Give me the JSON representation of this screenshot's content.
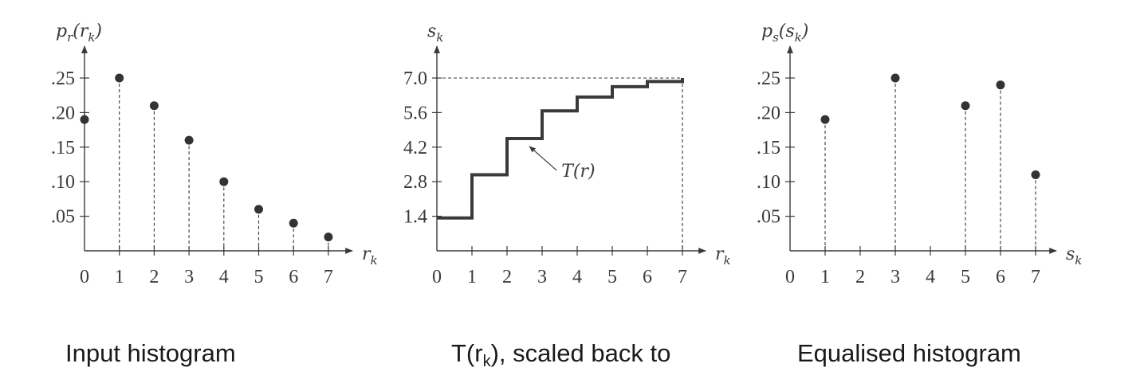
{
  "chart_data": [
    {
      "type": "scatter",
      "subtype": "stem",
      "ylabel": "p_r(r_k)",
      "xlabel": "r_k",
      "x": [
        0,
        1,
        2,
        3,
        4,
        5,
        6,
        7
      ],
      "values": [
        0.19,
        0.25,
        0.21,
        0.16,
        0.1,
        0.06,
        0.04,
        0.02
      ],
      "xticks": [
        "0",
        "1",
        "2",
        "3",
        "4",
        "5",
        "6",
        "7"
      ],
      "yticks": [
        ".05",
        ".10",
        ".15",
        ".20",
        ".25"
      ],
      "ylim": [
        0,
        0.29
      ],
      "caption": "Input histogram"
    },
    {
      "type": "line",
      "subtype": "step",
      "ylabel": "s_k",
      "xlabel": "r_k",
      "x": [
        0,
        1,
        2,
        3,
        4,
        5,
        6,
        7
      ],
      "values": [
        1.33,
        3.08,
        4.55,
        5.67,
        6.23,
        6.65,
        6.86,
        7.0
      ],
      "xticks": [
        "0",
        "1",
        "2",
        "3",
        "4",
        "5",
        "6",
        "7"
      ],
      "yticks": [
        "1.4",
        "2.8",
        "4.2",
        "5.6",
        "7.0"
      ],
      "ylim": [
        0,
        8
      ],
      "annotation": "T(r)",
      "caption_main": "T(r",
      "caption_sub": "k",
      "caption_rest": "), scaled back to"
    },
    {
      "type": "scatter",
      "subtype": "stem",
      "ylabel": "p_s(s_k)",
      "xlabel": "s_k",
      "x": [
        1,
        3,
        5,
        6,
        7
      ],
      "values": [
        0.19,
        0.25,
        0.21,
        0.24,
        0.11
      ],
      "xticks": [
        "0",
        "1",
        "2",
        "3",
        "4",
        "5",
        "6",
        "7"
      ],
      "yticks": [
        ".05",
        ".10",
        ".15",
        ".20",
        ".25"
      ],
      "ylim": [
        0,
        0.29
      ],
      "caption": "Equalised histogram"
    }
  ],
  "colors": {
    "ink": "#3a3a3a",
    "dot": "#333333",
    "caption": "#1a1a1a"
  }
}
